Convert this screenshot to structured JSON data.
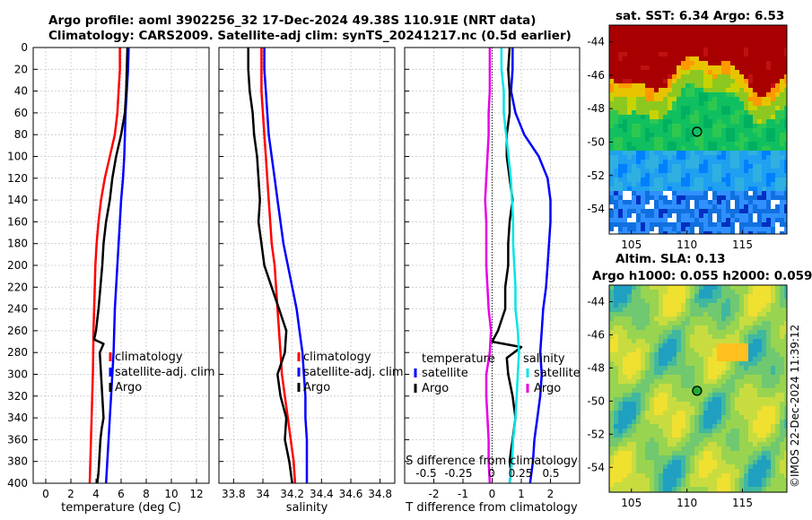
{
  "title": {
    "line1": "Argo profile: aoml 3902256_32 17-Dec-2024 49.38S 110.91E (NRT data)",
    "line2": "Climatology: CARS2009. Satellite-adj clim: synTS_20241217.nc (0.5d earlier)"
  },
  "timestamp": "©IMOS 22-Dec-2024 11:39:12",
  "colors": {
    "climatology": "#ff0000",
    "satellite": "#0000ff",
    "argo": "#000000",
    "salinity_sat": "#00e6e6",
    "salinity_argo": "#e600e6"
  },
  "chart_data": [
    {
      "id": "temperature",
      "type": "line",
      "xlabel": "temperature (deg C)",
      "xlim": [
        -1,
        13
      ],
      "xticks": [
        "0",
        "2",
        "4",
        "6",
        "8",
        "10",
        "12"
      ],
      "ylim": [
        0,
        400
      ],
      "yticks": [
        "0",
        "20",
        "40",
        "60",
        "80",
        "100",
        "120",
        "140",
        "160",
        "180",
        "200",
        "220",
        "240",
        "260",
        "280",
        "300",
        "320",
        "340",
        "360",
        "380",
        "400"
      ],
      "legend": [
        "climatology",
        "satellite-adj. clim",
        "Argo"
      ],
      "series": [
        {
          "name": "climatology",
          "color": "#ff0000",
          "x": [
            5.9,
            5.9,
            5.8,
            5.7,
            5.5,
            5.1,
            4.7,
            4.4,
            4.2,
            4.05,
            3.95,
            3.9,
            3.85,
            3.8,
            3.78,
            3.75,
            3.7,
            3.65,
            3.6,
            3.55,
            3.5
          ],
          "y": [
            0,
            20,
            40,
            60,
            80,
            100,
            120,
            140,
            160,
            180,
            200,
            220,
            240,
            260,
            280,
            300,
            320,
            340,
            360,
            380,
            400
          ]
        },
        {
          "name": "satellite-adj. clim",
          "color": "#0000ff",
          "x": [
            6.6,
            6.55,
            6.45,
            6.35,
            6.3,
            6.25,
            6.15,
            6.0,
            5.9,
            5.8,
            5.7,
            5.6,
            5.5,
            5.45,
            5.4,
            5.3,
            5.2,
            5.1,
            5.0,
            4.9,
            4.8
          ],
          "y": [
            0,
            20,
            40,
            60,
            80,
            100,
            120,
            140,
            160,
            180,
            200,
            220,
            240,
            260,
            280,
            300,
            320,
            340,
            360,
            380,
            400
          ]
        },
        {
          "name": "Argo",
          "color": "#000000",
          "x": [
            6.5,
            6.45,
            6.4,
            6.3,
            6.0,
            5.6,
            5.3,
            5.1,
            4.8,
            4.6,
            4.5,
            4.35,
            4.2,
            4.0,
            3.85,
            4.6,
            4.3,
            4.4,
            4.5,
            4.6,
            4.45,
            4.35,
            4.3,
            4.25,
            4.2,
            4.15,
            4.1
          ],
          "y": [
            0,
            20,
            40,
            60,
            80,
            100,
            120,
            140,
            160,
            180,
            200,
            220,
            240,
            260,
            268,
            272,
            280,
            300,
            320,
            340,
            350,
            360,
            370,
            380,
            390,
            395,
            400
          ]
        }
      ]
    },
    {
      "id": "salinity",
      "type": "line",
      "xlabel": "salinity",
      "xlim": [
        33.7,
        34.9
      ],
      "xticks": [
        "33.8",
        "34",
        "34.2",
        "34.4",
        "34.6",
        "34.8"
      ],
      "ylim": [
        0,
        400
      ],
      "legend": [
        "climatology",
        "satellite-adj. clim",
        "Argo"
      ],
      "series": [
        {
          "name": "climatology",
          "color": "#ff0000",
          "x": [
            33.99,
            33.99,
            33.99,
            34.0,
            34.01,
            34.02,
            34.03,
            34.04,
            34.05,
            34.06,
            34.08,
            34.09,
            34.1,
            34.11,
            34.12,
            34.13,
            34.15,
            34.17,
            34.19,
            34.21,
            34.22
          ],
          "y": [
            0,
            20,
            40,
            60,
            80,
            100,
            120,
            140,
            160,
            180,
            200,
            220,
            240,
            260,
            280,
            300,
            320,
            340,
            360,
            380,
            400
          ]
        },
        {
          "name": "satellite-adj. clim",
          "color": "#0000ff",
          "x": [
            34.01,
            34.01,
            34.02,
            34.03,
            34.04,
            34.06,
            34.08,
            34.1,
            34.12,
            34.14,
            34.17,
            34.2,
            34.23,
            34.25,
            34.27,
            34.28,
            34.29,
            34.29,
            34.3,
            34.3,
            34.3
          ],
          "y": [
            0,
            20,
            40,
            60,
            80,
            100,
            120,
            140,
            160,
            180,
            200,
            220,
            240,
            260,
            280,
            300,
            320,
            340,
            360,
            380,
            400
          ]
        },
        {
          "name": "Argo",
          "color": "#000000",
          "x": [
            33.9,
            33.9,
            33.91,
            33.93,
            33.94,
            33.96,
            33.97,
            33.98,
            33.97,
            33.99,
            34.01,
            34.06,
            34.11,
            34.16,
            34.15,
            34.1,
            34.12,
            34.16,
            34.15,
            34.18,
            34.2
          ],
          "y": [
            0,
            20,
            40,
            60,
            80,
            100,
            120,
            140,
            160,
            180,
            200,
            220,
            240,
            260,
            280,
            300,
            320,
            340,
            360,
            380,
            400
          ]
        }
      ]
    },
    {
      "id": "difference",
      "type": "line",
      "xlabel": "T difference from climatology",
      "xlim": [
        -3,
        3
      ],
      "xticks": [
        "-2",
        "-1",
        "0",
        "1",
        "2"
      ],
      "x2label": "S difference from climatology",
      "x2ticks": [
        "-0.5",
        "-0.25",
        "0",
        "0.25",
        "0.5"
      ],
      "ylim": [
        0,
        400
      ],
      "legend_temperature_title": "temperature",
      "legend_salinity_title": "salinity",
      "legend_temperature": [
        "satellite",
        "Argo"
      ],
      "legend_salinity": [
        "satellite",
        "Argo"
      ],
      "series": [
        {
          "name": "temperature satellite",
          "color": "#0000ff",
          "x": [
            0.7,
            0.7,
            0.65,
            0.8,
            1.1,
            1.6,
            1.9,
            2.0,
            2.0,
            1.95,
            1.9,
            1.85,
            1.75,
            1.7,
            1.65,
            1.7,
            1.65,
            1.55,
            1.45,
            1.4,
            1.3
          ],
          "y": [
            0,
            20,
            40,
            60,
            80,
            100,
            120,
            140,
            160,
            180,
            200,
            220,
            240,
            260,
            280,
            300,
            320,
            340,
            360,
            380,
            400
          ]
        },
        {
          "name": "temperature Argo",
          "color": "#000000",
          "x": [
            0.6,
            0.55,
            0.6,
            0.6,
            0.5,
            0.5,
            0.6,
            0.7,
            0.6,
            0.55,
            0.55,
            0.45,
            0.45,
            0.2,
            0.0,
            1.0,
            0.5,
            0.55,
            0.7,
            0.8,
            0.7,
            0.65,
            0.6,
            0.65,
            0.6
          ],
          "y": [
            0,
            20,
            40,
            60,
            80,
            100,
            120,
            140,
            160,
            180,
            200,
            220,
            240,
            260,
            270,
            275,
            285,
            300,
            320,
            340,
            360,
            370,
            380,
            390,
            400
          ]
        },
        {
          "name": "salinity satellite",
          "color": "#00e6e6",
          "x": [
            0.08,
            0.08,
            0.1,
            0.1,
            0.12,
            0.14,
            0.16,
            0.17,
            0.18,
            0.18,
            0.19,
            0.2,
            0.2,
            0.22,
            0.23,
            0.22,
            0.21,
            0.2,
            0.18,
            0.17,
            0.15
          ],
          "y": [
            0,
            20,
            40,
            60,
            80,
            100,
            120,
            140,
            160,
            180,
            200,
            220,
            240,
            260,
            280,
            300,
            320,
            340,
            360,
            380,
            400
          ]
        },
        {
          "name": "salinity Argo",
          "color": "#e600e6",
          "x": [
            -0.02,
            -0.02,
            -0.02,
            -0.03,
            -0.03,
            -0.04,
            -0.05,
            -0.06,
            -0.05,
            -0.05,
            -0.05,
            -0.04,
            -0.03,
            -0.01,
            -0.02,
            -0.05,
            -0.05,
            -0.04,
            -0.03,
            -0.03,
            -0.02
          ],
          "y": [
            0,
            20,
            40,
            60,
            80,
            100,
            120,
            140,
            160,
            180,
            200,
            220,
            240,
            260,
            280,
            300,
            320,
            340,
            360,
            380,
            400
          ]
        }
      ]
    },
    {
      "id": "sst_map",
      "type": "heatmap",
      "title": "sat. SST: 6.34 Argo: 6.53",
      "xlim": [
        103,
        119
      ],
      "ylim": [
        -55.5,
        -43
      ],
      "xticks": [
        "105",
        "110",
        "115"
      ],
      "yticks": [
        "-44",
        "-46",
        "-48",
        "-50",
        "-52",
        "-54"
      ],
      "marker": {
        "lon": 110.91,
        "lat": -49.38
      }
    },
    {
      "id": "sla_map",
      "type": "heatmap",
      "title": "Altim. SLA: 0.13",
      "subtitle": "Argo h1000: 0.055 h2000: 0.059",
      "xlim": [
        103,
        119
      ],
      "ylim": [
        -55.5,
        -43
      ],
      "xticks": [
        "105",
        "110",
        "115"
      ],
      "yticks": [
        "-44",
        "-46",
        "-48",
        "-50",
        "-52",
        "-54"
      ],
      "marker": {
        "lon": 110.91,
        "lat": -49.38
      }
    }
  ]
}
